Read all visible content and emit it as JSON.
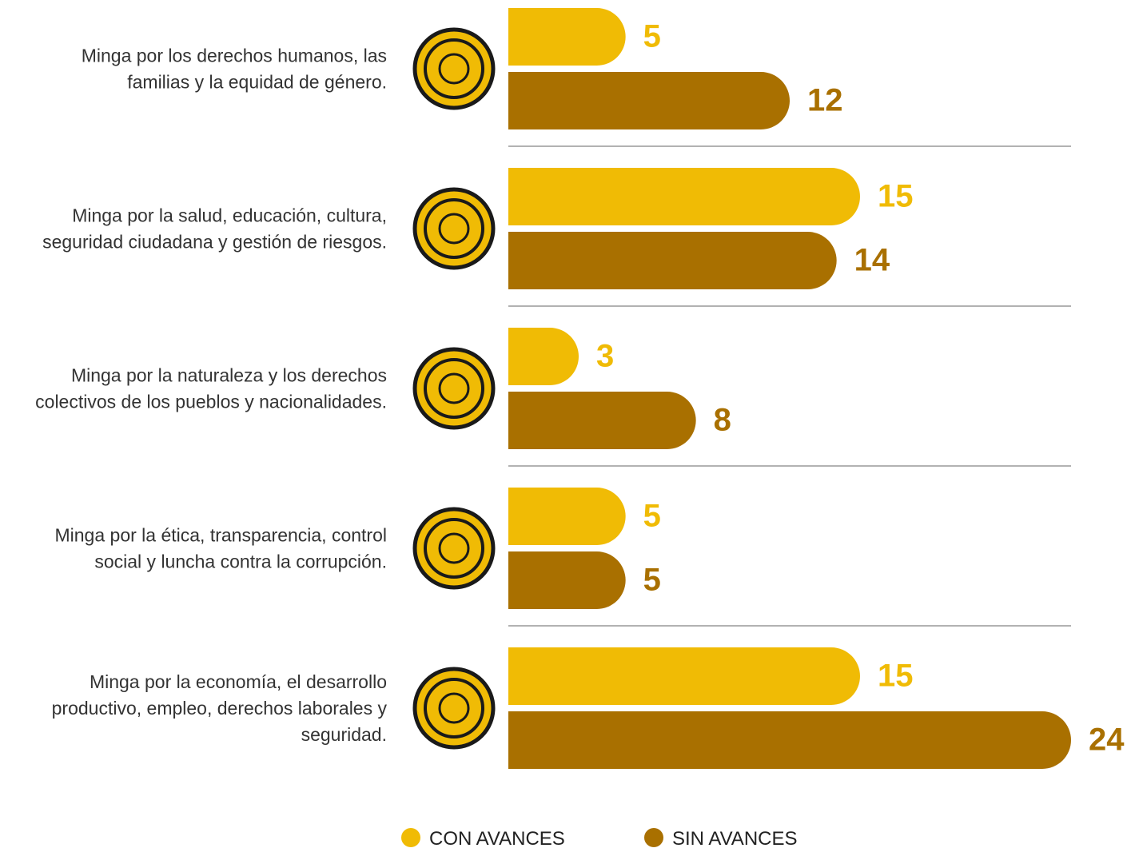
{
  "chart_data": {
    "type": "bar",
    "orientation": "horizontal",
    "categories": [
      "Minga por los derechos humanos, las\nfamilias y la equidad de género.",
      "Minga por la salud, educación, cultura,\nseguridad ciudadana y gestión de riesgos.",
      "Minga por la naturaleza y los derechos\ncolectivos de los pueblos y nacionalidades.",
      "Minga por la ética, transparencia, control\nsocial y luncha contra la corrupción.",
      "Minga por la economía, el desarrollo\nproductivo, empleo, derechos laborales y\nseguridad."
    ],
    "series": [
      {
        "name": "CON AVANCES",
        "color": "#f0bb05",
        "values": [
          5,
          15,
          3,
          5,
          15
        ]
      },
      {
        "name": "SIN AVANCES",
        "color": "#a97000",
        "values": [
          12,
          14,
          8,
          5,
          24
        ]
      }
    ],
    "legend": "bottom"
  }
}
